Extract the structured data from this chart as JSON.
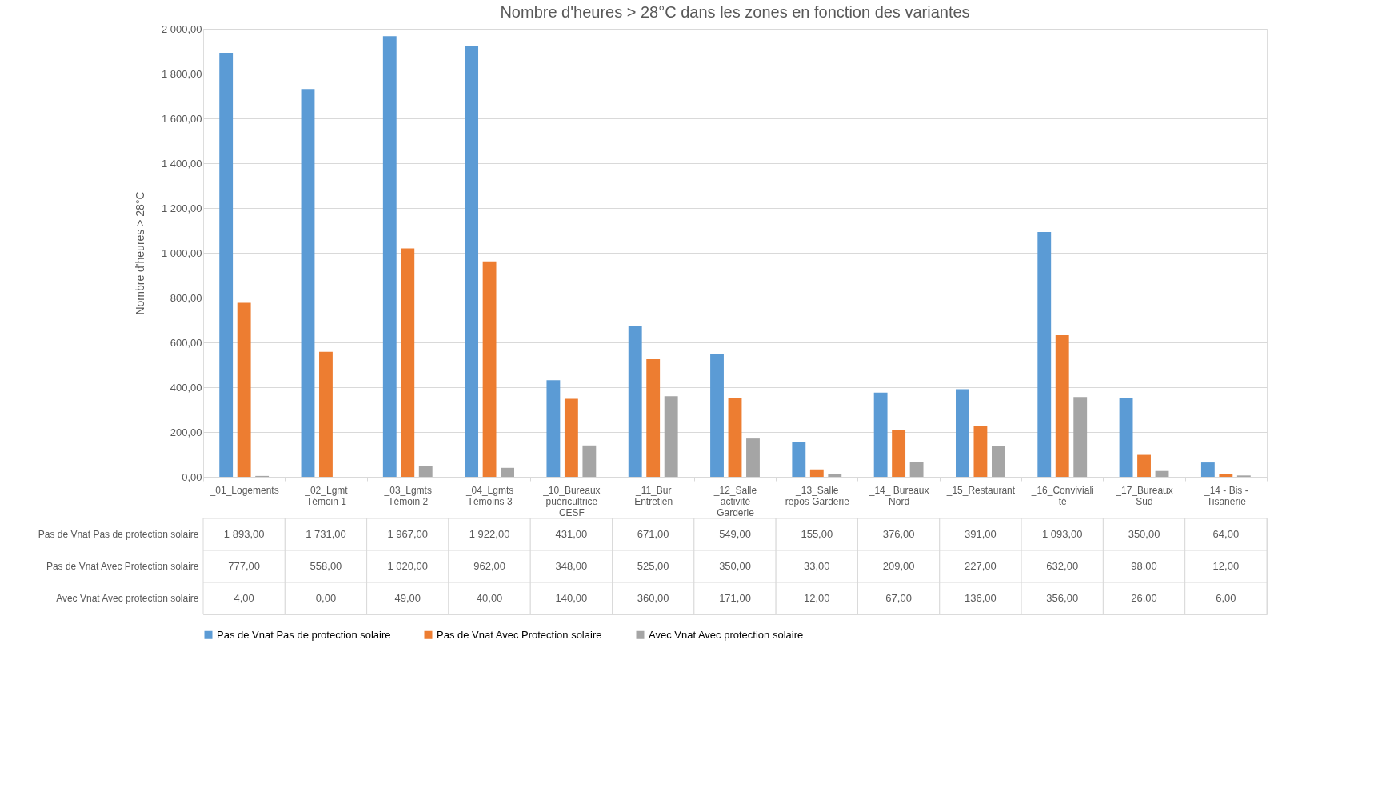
{
  "chart_data": {
    "type": "bar",
    "title": "Nombre d'heures > 28°C dans les zones  en fonction des variantes",
    "ylabel": "Nombre d'heures > 28°C",
    "categories": [
      "_01_Logements",
      "_02_Lgmt Témoin 1",
      "_03_Lgmts Témoin 2",
      "_04_Lgmts Témoins 3",
      "_10_Bureaux puéricultrice CESF",
      "_11_Bur Entretien",
      "_12_Salle activité Garderie",
      "_13_Salle repos Garderie",
      "_14_ Bureaux Nord",
      "_15_Restaurant",
      "_16_Convivialité",
      "_17_Bureaux Sud",
      "_14 - Bis - Tisanerie"
    ],
    "series": [
      {
        "name": "Pas de Vnat Pas de protection solaire",
        "color": "#5b9bd5",
        "values": [
          1893,
          1731,
          1967,
          1922,
          431,
          671,
          549,
          155,
          376,
          391,
          1093,
          350,
          64
        ],
        "value_labels": [
          "1 893,00",
          "1 731,00",
          "1 967,00",
          "1 922,00",
          "431,00",
          "671,00",
          "549,00",
          "155,00",
          "376,00",
          "391,00",
          "1 093,00",
          "350,00",
          "64,00"
        ]
      },
      {
        "name": "Pas de Vnat Avec Protection solaire",
        "color": "#ed7d31",
        "values": [
          777,
          558,
          1020,
          962,
          348,
          525,
          350,
          33,
          209,
          227,
          632,
          98,
          12
        ],
        "value_labels": [
          "777,00",
          "558,00",
          "1 020,00",
          "962,00",
          "348,00",
          "525,00",
          "350,00",
          "33,00",
          "209,00",
          "227,00",
          "632,00",
          "98,00",
          "12,00"
        ]
      },
      {
        "name": "Avec Vnat Avec protection solaire",
        "color": "#a5a5a5",
        "values": [
          4,
          0,
          49,
          40,
          140,
          360,
          171,
          12,
          67,
          136,
          356,
          26,
          6
        ],
        "value_labels": [
          "4,00",
          "0,00",
          "49,00",
          "40,00",
          "140,00",
          "360,00",
          "171,00",
          "12,00",
          "67,00",
          "136,00",
          "356,00",
          "26,00",
          "6,00"
        ]
      }
    ],
    "ylim": [
      0,
      2000
    ],
    "yticks": [
      {
        "value": 0,
        "label": "0,00"
      },
      {
        "value": 200,
        "label": "200,00"
      },
      {
        "value": 400,
        "label": "400,00"
      },
      {
        "value": 600,
        "label": "600,00"
      },
      {
        "value": 800,
        "label": "800,00"
      },
      {
        "value": 1000,
        "label": "1 000,00"
      },
      {
        "value": 1200,
        "label": "1 200,00"
      },
      {
        "value": 1400,
        "label": "1 400,00"
      },
      {
        "value": 1600,
        "label": "1 600,00"
      },
      {
        "value": 1800,
        "label": "1 800,00"
      },
      {
        "value": 2000,
        "label": "2 000,00"
      }
    ],
    "grid": "y",
    "legend": "bottom"
  }
}
